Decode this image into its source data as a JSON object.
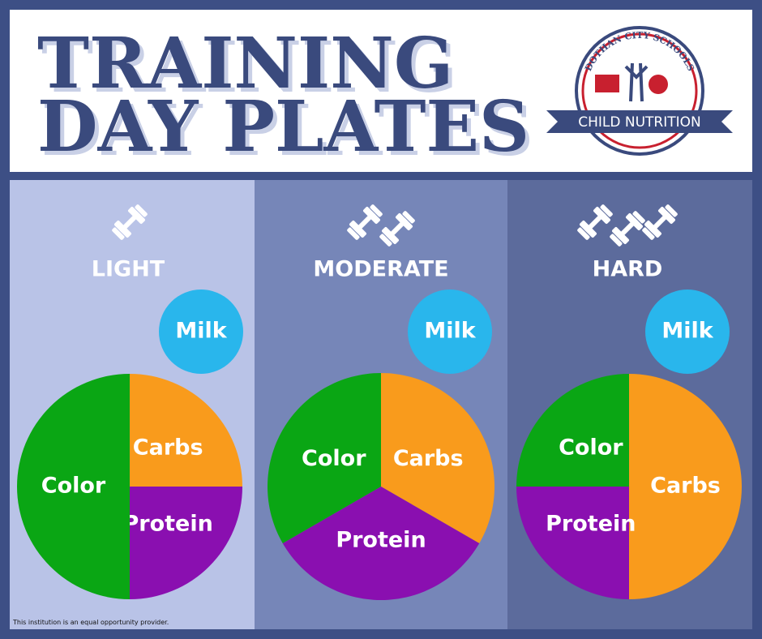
{
  "header": {
    "title_line1": "TRAINING",
    "title_line2": "DAY PLATES",
    "logo_arc": "DOTHAN CITY SCHOOLS",
    "logo_banner": "CHILD NUTRITION"
  },
  "footer": "This institution is an equal opportunity provider.",
  "chart_data": [
    {
      "type": "pie",
      "title": "LIGHT",
      "annotation": "Milk",
      "categories": [
        "Carbs",
        "Protein",
        "Color"
      ],
      "values": [
        25,
        25,
        50
      ],
      "colors": [
        "#f99b1c",
        "#8a0fb0",
        "#0aa614"
      ]
    },
    {
      "type": "pie",
      "title": "MODERATE",
      "annotation": "Milk",
      "categories": [
        "Carbs",
        "Protein",
        "Color"
      ],
      "values": [
        33.3,
        33.3,
        33.3
      ],
      "colors": [
        "#f99b1c",
        "#8a0fb0",
        "#0aa614"
      ]
    },
    {
      "type": "pie",
      "title": "HARD",
      "annotation": "Milk",
      "categories": [
        "Carbs",
        "Protein",
        "Color"
      ],
      "values": [
        50,
        25,
        25
      ],
      "colors": [
        "#f99b1c",
        "#8a0fb0",
        "#0aa614"
      ]
    }
  ]
}
